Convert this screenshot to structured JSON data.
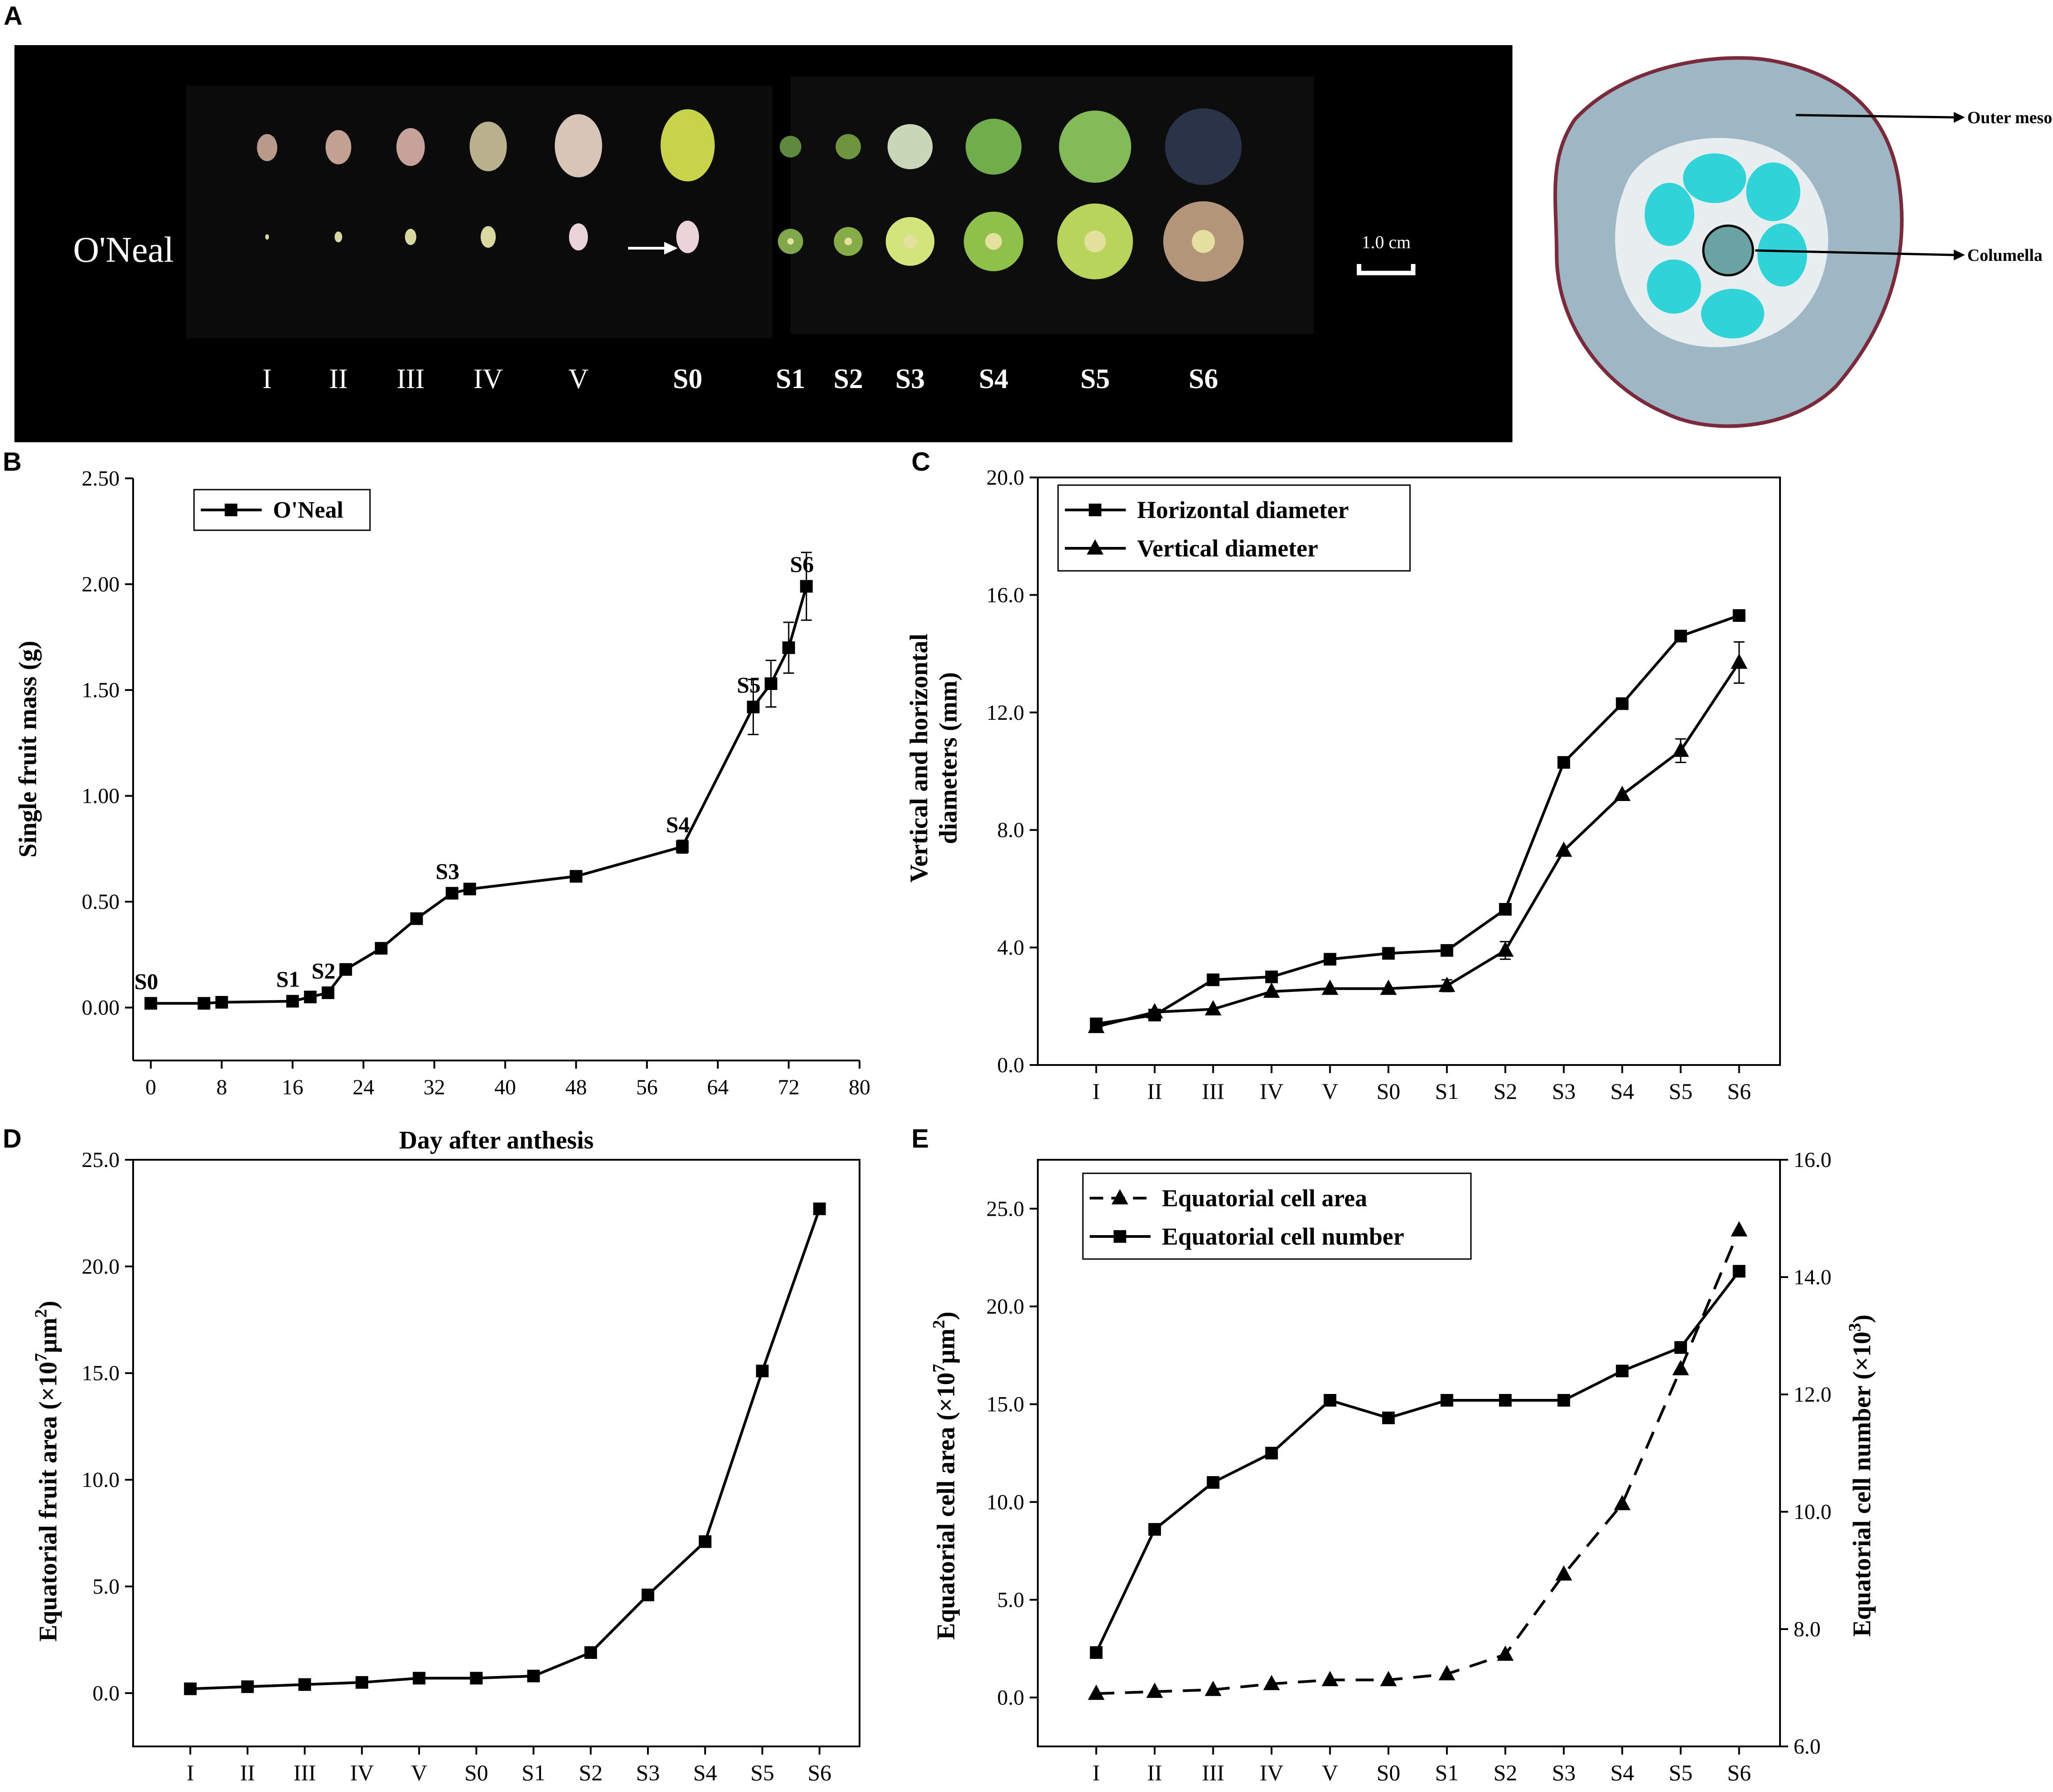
{
  "panels": {
    "A": "A",
    "B": "B",
    "C": "C",
    "D": "D",
    "E": "E"
  },
  "photo": {
    "cultivar": "O'Neal",
    "scale_bar": "1.0 cm",
    "stages": [
      "I",
      "II",
      "III",
      "IV",
      "V",
      "S0",
      "S1",
      "S2",
      "S3",
      "S4",
      "S5",
      "S6"
    ],
    "bud_colors": [
      "#b89a8a",
      "#c2a192",
      "#c6a29a",
      "#b9b08c",
      "#d7c6b8",
      "#c8d24a"
    ],
    "fruit_colors": [
      "#5f8a3e",
      "#6e9440",
      "#c9d6b8",
      "#6fae4a",
      "#84bb58",
      "#2a3348"
    ],
    "section_colors": [
      "#7fa84a",
      "#86ac48",
      "#d2e47a",
      "#8fc14a",
      "#b8d45a",
      "#b3967a"
    ]
  },
  "section": {
    "label_outer": "Outer mesocarp",
    "label_columella": "Columella"
  },
  "chart_data": [
    {
      "id": "B",
      "type": "line",
      "xlabel": "Day after anthesis",
      "ylabel": "Single fruit mass (g)",
      "x_ticks": [
        "0",
        "8",
        "16",
        "24",
        "32",
        "40",
        "48",
        "56",
        "64",
        "72",
        "80"
      ],
      "y_ticks": [
        "0.00",
        "0.50",
        "1.00",
        "1.50",
        "2.00",
        "2.50"
      ],
      "xlim": [
        -2,
        80
      ],
      "ylim": [
        -0.25,
        2.5
      ],
      "grid": false,
      "legend": "top-left",
      "series": [
        {
          "name": "O'Neal",
          "marker": "square",
          "x": [
            0,
            6,
            8,
            16,
            18,
            20,
            22,
            26,
            30,
            34,
            36,
            48,
            60,
            68,
            70,
            72,
            74
          ],
          "y": [
            0.02,
            0.02,
            0.025,
            0.03,
            0.05,
            0.07,
            0.18,
            0.28,
            0.42,
            0.54,
            0.56,
            0.62,
            0.76,
            1.42,
            1.53,
            1.7,
            1.99
          ],
          "error": [
            0,
            0,
            0,
            0,
            0,
            0,
            0,
            0,
            0,
            0,
            0,
            0,
            0.03,
            0.13,
            0.11,
            0.12,
            0.16
          ]
        }
      ],
      "annotations": [
        {
          "text": "S0",
          "x": 0,
          "y": 0.02
        },
        {
          "text": "S1",
          "x": 16,
          "y": 0.03
        },
        {
          "text": "S2",
          "x": 20,
          "y": 0.07
        },
        {
          "text": "S3",
          "x": 34,
          "y": 0.54
        },
        {
          "text": "S4",
          "x": 60,
          "y": 0.76
        },
        {
          "text": "S5",
          "x": 68,
          "y": 1.42
        },
        {
          "text": "S6",
          "x": 74,
          "y": 1.99
        }
      ]
    },
    {
      "id": "C",
      "type": "line",
      "xlabel": "",
      "ylabel": "Vertical and horizontal diameters (mm)",
      "ylabel_lines": [
        "Vertical and horizontal",
        "diameters (mm)"
      ],
      "categories": [
        "I",
        "II",
        "III",
        "IV",
        "V",
        "S0",
        "S1",
        "S2",
        "S3",
        "S4",
        "S5",
        "S6"
      ],
      "y_ticks": [
        "0.0",
        "4.0",
        "8.0",
        "12.0",
        "16.0",
        "20.0"
      ],
      "ylim": [
        0,
        20
      ],
      "grid": false,
      "legend": "top-left",
      "series": [
        {
          "name": "Horizontal diameter",
          "marker": "square",
          "values": [
            1.4,
            1.7,
            2.9,
            3.0,
            3.6,
            3.8,
            3.9,
            5.3,
            10.3,
            12.3,
            14.6,
            15.3
          ],
          "error": [
            0,
            0,
            0,
            0,
            0,
            0,
            0,
            0,
            0,
            0,
            0,
            0
          ]
        },
        {
          "name": "Vertical diameter",
          "marker": "triangle",
          "values": [
            1.3,
            1.8,
            1.9,
            2.5,
            2.6,
            2.6,
            2.7,
            3.9,
            7.3,
            9.2,
            10.7,
            13.7
          ],
          "error": [
            0,
            0,
            0,
            0,
            0,
            0,
            0.2,
            0.3,
            0,
            0,
            0.4,
            0.7
          ]
        }
      ]
    },
    {
      "id": "D",
      "type": "line",
      "xlabel": "",
      "ylabel_main": "Equatorial fruit area (×10",
      "ylabel_sup": "7",
      "ylabel_end": "μm",
      "ylabel_sup2": "2",
      "ylabel_close": ")",
      "categories": [
        "I",
        "II",
        "III",
        "IV",
        "V",
        "S0",
        "S1",
        "S2",
        "S3",
        "S4",
        "S5",
        "S6"
      ],
      "y_ticks": [
        "0.0",
        "5.0",
        "10.0",
        "15.0",
        "20.0",
        "25.0"
      ],
      "ylim": [
        -2.5,
        25
      ],
      "grid": false,
      "series": [
        {
          "name": "",
          "marker": "square",
          "values": [
            0.2,
            0.3,
            0.4,
            0.5,
            0.7,
            0.7,
            0.8,
            1.9,
            4.6,
            7.1,
            15.1,
            22.7
          ]
        }
      ]
    },
    {
      "id": "E",
      "type": "line",
      "xlabel": "",
      "ylabel_left_main": "Equatorial cell area (×10",
      "ylabel_left_sup": "7",
      "ylabel_left_end": "μm",
      "ylabel_left_sup2": "2",
      "ylabel_left_close": ")",
      "ylabel_right_main": "Equatorial cell number (×10",
      "ylabel_right_sup": "3",
      "ylabel_right_close": ")",
      "categories": [
        "I",
        "II",
        "III",
        "IV",
        "V",
        "S0",
        "S1",
        "S2",
        "S3",
        "S4",
        "S5",
        "S6"
      ],
      "y_ticks_left": [
        "0.0",
        "5.0",
        "10.0",
        "15.0",
        "20.0",
        "25.0"
      ],
      "y_ticks_right": [
        "6.0",
        "8.0",
        "10.0",
        "12.0",
        "14.0",
        "16.0"
      ],
      "ylim_left": [
        -2.5,
        27.5
      ],
      "ylim_right": [
        6,
        16
      ],
      "grid": false,
      "legend": "top-left",
      "series": [
        {
          "name": "Equatorial cell area",
          "marker": "triangle",
          "axis": "left",
          "dash": true,
          "values": [
            0.2,
            0.3,
            0.4,
            0.7,
            0.9,
            0.9,
            1.2,
            2.2,
            6.3,
            9.9,
            16.8,
            23.9
          ]
        },
        {
          "name": "Equatorial cell number",
          "marker": "square",
          "axis": "right",
          "dash": false,
          "values": [
            7.6,
            9.7,
            10.5,
            11.0,
            11.9,
            11.6,
            11.9,
            11.9,
            11.9,
            12.4,
            12.8,
            14.1
          ]
        }
      ]
    }
  ]
}
